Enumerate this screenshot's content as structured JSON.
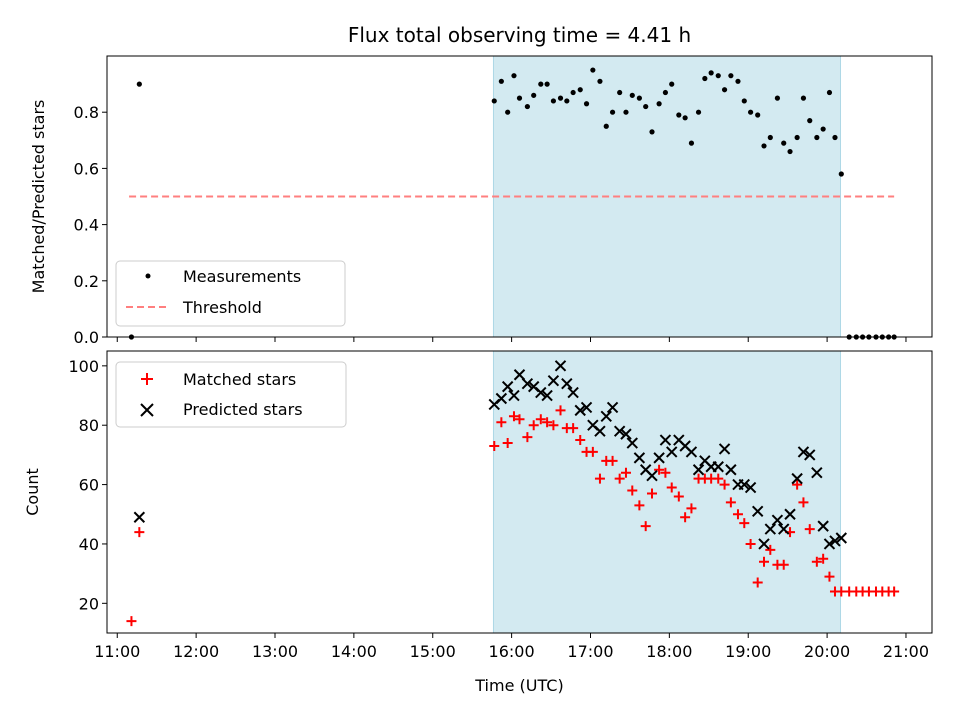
{
  "chart_data": [
    {
      "type": "scatter",
      "title": "Flux total observing time = 4.41 h",
      "xlabel": "",
      "ylabel": "Matched/Predicted stars",
      "xlim": [
        10.87,
        21.33
      ],
      "ylim": [
        0.0,
        1.0
      ],
      "yticks": [
        0.0,
        0.2,
        0.4,
        0.6,
        0.8
      ],
      "ytick_labels": [
        "0.0",
        "0.2",
        "0.4",
        "0.6",
        "0.8"
      ],
      "shaded_interval": {
        "x": [
          15.77,
          20.17
        ],
        "color": "#d3eaf1"
      },
      "legend": {
        "placement": "lower-left",
        "entries": [
          "Measurements",
          "Threshold"
        ]
      },
      "series": [
        {
          "name": "Measurements",
          "marker": "dot",
          "color": "#000000",
          "x": [
            11.18,
            11.28,
            15.78,
            15.87,
            15.95,
            16.03,
            16.1,
            16.2,
            16.28,
            16.37,
            16.45,
            16.53,
            16.62,
            16.7,
            16.78,
            16.87,
            16.95,
            17.03,
            17.12,
            17.2,
            17.28,
            17.37,
            17.45,
            17.53,
            17.62,
            17.7,
            17.78,
            17.87,
            17.95,
            18.03,
            18.12,
            18.2,
            18.28,
            18.37,
            18.45,
            18.53,
            18.62,
            18.7,
            18.78,
            18.87,
            18.95,
            19.03,
            19.12,
            19.2,
            19.28,
            19.37,
            19.45,
            19.53,
            19.62,
            19.7,
            19.78,
            19.87,
            19.95,
            20.03,
            20.1,
            20.18,
            20.28,
            20.37,
            20.45,
            20.53,
            20.62,
            20.7,
            20.78,
            20.85
          ],
          "y": [
            0.0,
            0.9,
            0.84,
            0.91,
            0.8,
            0.93,
            0.85,
            0.82,
            0.86,
            0.9,
            0.9,
            0.84,
            0.85,
            0.84,
            0.87,
            0.88,
            0.83,
            0.95,
            0.91,
            0.75,
            0.8,
            0.87,
            0.8,
            0.86,
            0.85,
            0.82,
            0.73,
            0.83,
            0.87,
            0.9,
            0.79,
            0.78,
            0.69,
            0.8,
            0.92,
            0.94,
            0.93,
            0.88,
            0.93,
            0.91,
            0.84,
            0.8,
            0.79,
            0.68,
            0.71,
            0.85,
            0.69,
            0.66,
            0.71,
            0.85,
            0.77,
            0.71,
            0.74,
            0.87,
            0.71,
            0.58,
            0.0,
            0.0,
            0.0,
            0.0,
            0.0,
            0.0,
            0.0,
            0.0
          ]
        },
        {
          "name": "Threshold",
          "marker": "dashed-line",
          "color": "#ff7f7f",
          "x": [
            11.15,
            20.85
          ],
          "y": [
            0.5,
            0.5
          ]
        }
      ]
    },
    {
      "type": "scatter",
      "title": "",
      "xlabel": "Time (UTC)",
      "ylabel": "Count",
      "xlim": [
        10.87,
        21.33
      ],
      "ylim": [
        10,
        105
      ],
      "yticks": [
        20,
        40,
        60,
        80,
        100
      ],
      "ytick_labels": [
        "20",
        "40",
        "60",
        "80",
        "100"
      ],
      "xticks": [
        11,
        12,
        13,
        14,
        15,
        16,
        17,
        18,
        19,
        20,
        21
      ],
      "xtick_labels": [
        "11:00",
        "12:00",
        "13:00",
        "14:00",
        "15:00",
        "16:00",
        "17:00",
        "18:00",
        "19:00",
        "20:00",
        "21:00"
      ],
      "shaded_interval": {
        "x": [
          15.77,
          20.17
        ],
        "color": "#d3eaf1"
      },
      "legend": {
        "placement": "upper-left",
        "entries": [
          "Matched stars",
          "Predicted stars"
        ]
      },
      "series": [
        {
          "name": "Matched stars",
          "marker": "plus",
          "color": "#ff0000",
          "x": [
            11.18,
            11.28,
            15.78,
            15.87,
            15.95,
            16.03,
            16.1,
            16.2,
            16.28,
            16.37,
            16.45,
            16.53,
            16.62,
            16.7,
            16.78,
            16.87,
            16.95,
            17.03,
            17.12,
            17.2,
            17.28,
            17.37,
            17.45,
            17.53,
            17.62,
            17.7,
            17.78,
            17.87,
            17.95,
            18.03,
            18.12,
            18.2,
            18.28,
            18.37,
            18.45,
            18.53,
            18.62,
            18.7,
            18.78,
            18.87,
            18.95,
            19.03,
            19.12,
            19.2,
            19.28,
            19.37,
            19.45,
            19.53,
            19.62,
            19.7,
            19.78,
            19.87,
            19.95,
            20.03,
            20.1,
            20.18,
            20.28,
            20.37,
            20.45,
            20.53,
            20.62,
            20.7,
            20.78,
            20.85
          ],
          "y": [
            14,
            44,
            73,
            81,
            74,
            83,
            82,
            76,
            80,
            82,
            81,
            80,
            85,
            79,
            79,
            75,
            71,
            71,
            62,
            68,
            68,
            62,
            64,
            58,
            53,
            46,
            57,
            65,
            64,
            59,
            56,
            49,
            52,
            62,
            62,
            62,
            62,
            60,
            54,
            50,
            47,
            40,
            27,
            34,
            38,
            33,
            33,
            44,
            60,
            54,
            45,
            34,
            35,
            29,
            24,
            24,
            24,
            24,
            24,
            24,
            24,
            24,
            24,
            24
          ]
        },
        {
          "name": "Predicted stars",
          "marker": "x",
          "color": "#000000",
          "x": [
            11.28,
            15.78,
            15.87,
            15.95,
            16.03,
            16.1,
            16.2,
            16.28,
            16.37,
            16.45,
            16.53,
            16.62,
            16.7,
            16.78,
            16.87,
            16.95,
            17.03,
            17.12,
            17.2,
            17.28,
            17.37,
            17.45,
            17.53,
            17.62,
            17.7,
            17.78,
            17.87,
            17.95,
            18.03,
            18.12,
            18.2,
            18.28,
            18.37,
            18.45,
            18.53,
            18.62,
            18.7,
            18.78,
            18.87,
            18.95,
            19.03,
            19.12,
            19.2,
            19.28,
            19.37,
            19.45,
            19.53,
            19.62,
            19.7,
            19.78,
            19.87,
            19.95,
            20.03,
            20.1,
            20.18
          ],
          "y": [
            49,
            87,
            89,
            93,
            90,
            97,
            94,
            93,
            91,
            90,
            95,
            100,
            94,
            91,
            85,
            86,
            80,
            78,
            83,
            86,
            78,
            77,
            74,
            69,
            65,
            63,
            69,
            75,
            71,
            75,
            73,
            71,
            65,
            68,
            66,
            66,
            72,
            65,
            60,
            60,
            59,
            51,
            40,
            45,
            48,
            45,
            50,
            62,
            71,
            70,
            64,
            46,
            40,
            41,
            42
          ]
        }
      ]
    }
  ]
}
